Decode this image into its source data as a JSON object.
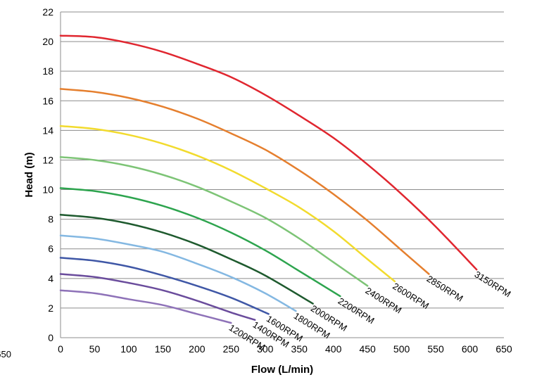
{
  "chart_data": {
    "type": "line",
    "title": "",
    "xlabel": "Flow (L/min)",
    "ylabel": "Head (m)",
    "xlim": [
      0,
      650
    ],
    "ylim": [
      0,
      22
    ],
    "x_ticks": [
      "0",
      "50",
      "100",
      "150",
      "200",
      "250",
      "300",
      "350",
      "400",
      "450",
      "500",
      "550",
      "600",
      "650"
    ],
    "y_ticks": [
      "0",
      "2",
      "4",
      "6",
      "8",
      "10",
      "12",
      "14",
      "16",
      "18",
      "20",
      "22"
    ],
    "grid": "horizontal",
    "legend": "none",
    "clipped_text": {
      "left_labels": [
        "650"
      ]
    },
    "series": [
      {
        "name": "1200RPM",
        "color": "#8e72b8",
        "x": [
          0,
          50,
          100,
          150,
          200,
          250
        ],
        "y": [
          3.2,
          3.0,
          2.6,
          2.2,
          1.6,
          1.0
        ]
      },
      {
        "name": "1400RPM",
        "color": "#6a4c9c",
        "x": [
          0,
          50,
          100,
          150,
          200,
          250,
          285
        ],
        "y": [
          4.3,
          4.1,
          3.7,
          3.2,
          2.5,
          1.7,
          1.2
        ]
      },
      {
        "name": "1600RPM",
        "color": "#3f57a6",
        "x": [
          0,
          50,
          100,
          150,
          200,
          250,
          305
        ],
        "y": [
          5.4,
          5.2,
          4.8,
          4.2,
          3.5,
          2.7,
          1.6
        ]
      },
      {
        "name": "1800RPM",
        "color": "#84b8e2",
        "x": [
          0,
          50,
          100,
          150,
          200,
          250,
          300,
          345
        ],
        "y": [
          6.9,
          6.7,
          6.3,
          5.8,
          5.0,
          4.1,
          3.0,
          1.8
        ]
      },
      {
        "name": "2000RPM",
        "color": "#1e5a2e",
        "x": [
          0,
          50,
          100,
          150,
          200,
          250,
          300,
          370
        ],
        "y": [
          8.3,
          8.1,
          7.7,
          7.1,
          6.3,
          5.3,
          4.2,
          2.3
        ]
      },
      {
        "name": "2200RPM",
        "color": "#2da44e",
        "x": [
          0,
          50,
          100,
          150,
          200,
          250,
          300,
          350,
          410
        ],
        "y": [
          10.1,
          9.9,
          9.5,
          8.9,
          8.1,
          7.1,
          5.9,
          4.5,
          2.8
        ]
      },
      {
        "name": "2400RPM",
        "color": "#7dc476",
        "x": [
          0,
          50,
          100,
          150,
          200,
          250,
          300,
          350,
          400,
          450
        ],
        "y": [
          12.2,
          12.0,
          11.6,
          11.0,
          10.2,
          9.2,
          8.1,
          6.7,
          5.1,
          3.5
        ]
      },
      {
        "name": "2600RPM",
        "color": "#f2db2e",
        "x": [
          0,
          50,
          100,
          150,
          200,
          250,
          300,
          350,
          400,
          450,
          490
        ],
        "y": [
          14.3,
          14.1,
          13.7,
          13.1,
          12.3,
          11.3,
          10.1,
          8.8,
          7.2,
          5.3,
          3.8
        ]
      },
      {
        "name": "2850RPM",
        "color": "#e57f2e",
        "x": [
          0,
          50,
          100,
          150,
          200,
          250,
          300,
          350,
          400,
          450,
          500,
          540
        ],
        "y": [
          16.8,
          16.6,
          16.2,
          15.6,
          14.8,
          13.8,
          12.7,
          11.3,
          9.7,
          7.9,
          5.9,
          4.3
        ]
      },
      {
        "name": "3150RPM",
        "color": "#e0262f",
        "x": [
          0,
          50,
          100,
          150,
          200,
          250,
          300,
          350,
          400,
          450,
          500,
          550,
          610
        ],
        "y": [
          20.4,
          20.3,
          19.9,
          19.3,
          18.5,
          17.6,
          16.4,
          15.0,
          13.5,
          11.7,
          9.7,
          7.5,
          4.6
        ]
      }
    ]
  }
}
